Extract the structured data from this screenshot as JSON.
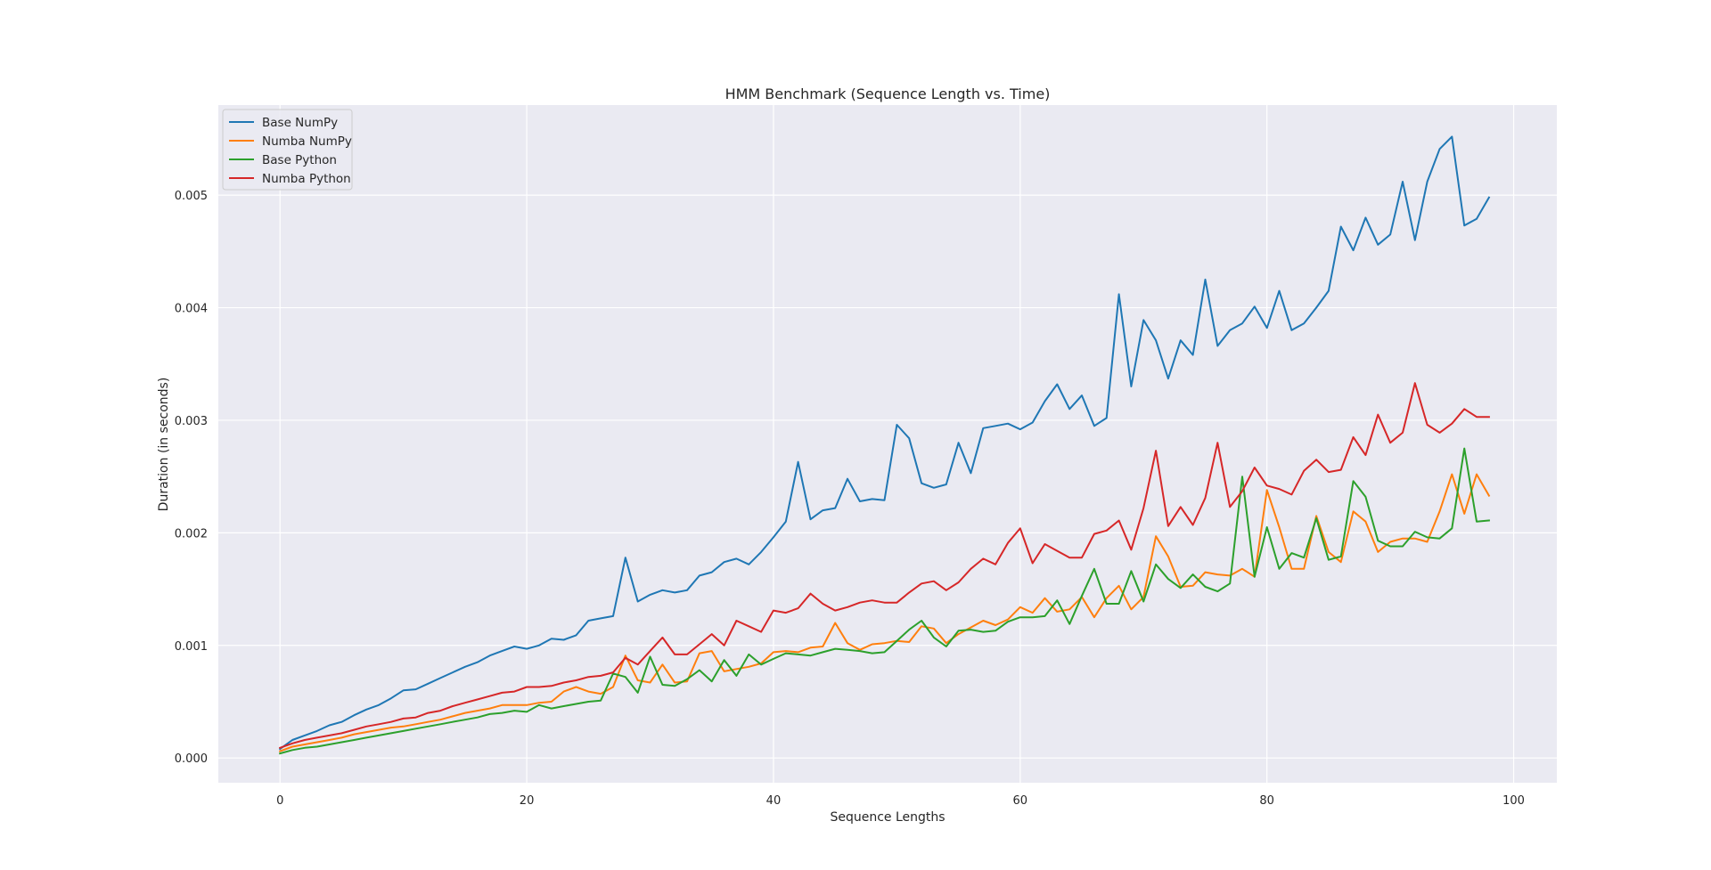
{
  "chart_data": {
    "type": "line",
    "title": "HMM Benchmark (Sequence Length vs. Time)",
    "xlabel": "Sequence Lengths",
    "ylabel": "Duration (in seconds)",
    "xlim": [
      -5,
      103.5
    ],
    "ylim": [
      -0.00022,
      0.0058
    ],
    "xticks": [
      0,
      20,
      40,
      60,
      80,
      100
    ],
    "xtick_labels": [
      "0",
      "20",
      "40",
      "60",
      "80",
      "100"
    ],
    "yticks": [
      0.0,
      0.001,
      0.002,
      0.003,
      0.004,
      0.005
    ],
    "ytick_labels": [
      "0.000",
      "0.001",
      "0.002",
      "0.003",
      "0.004",
      "0.005"
    ],
    "grid": true,
    "legend_position": "upper-left",
    "x_start": 0,
    "x_step": 1,
    "series": [
      {
        "name": "Base NumPy",
        "color": "#1f77b4",
        "values": [
          8e-05,
          0.00016,
          0.0002,
          0.00024,
          0.00029,
          0.00032,
          0.00038,
          0.00043,
          0.00047,
          0.00053,
          0.0006,
          0.00061,
          0.00066,
          0.00071,
          0.00076,
          0.00081,
          0.00085,
          0.00091,
          0.00095,
          0.00099,
          0.00097,
          0.001,
          0.00106,
          0.00105,
          0.00109,
          0.00122,
          0.00124,
          0.00126,
          0.00178,
          0.00139,
          0.00145,
          0.00149,
          0.00147,
          0.00149,
          0.00162,
          0.00165,
          0.00174,
          0.00177,
          0.00172,
          0.00183,
          0.00196,
          0.0021,
          0.00263,
          0.00212,
          0.0022,
          0.00222,
          0.00248,
          0.00228,
          0.0023,
          0.00229,
          0.00296,
          0.00284,
          0.00244,
          0.0024,
          0.00243,
          0.0028,
          0.00253,
          0.00293,
          0.00295,
          0.00297,
          0.00292,
          0.00298,
          0.00317,
          0.00332,
          0.0031,
          0.00322,
          0.00295,
          0.00302,
          0.00412,
          0.0033,
          0.00389,
          0.00371,
          0.00337,
          0.00371,
          0.00358,
          0.00425,
          0.00366,
          0.0038,
          0.00386,
          0.00401,
          0.00382,
          0.00415,
          0.0038,
          0.00386,
          0.004,
          0.00415,
          0.00472,
          0.00451,
          0.0048,
          0.00456,
          0.00465,
          0.00512,
          0.0046,
          0.00512,
          0.00541,
          0.00552,
          0.00473,
          0.00479,
          0.00498
        ]
      },
      {
        "name": "Numba NumPy",
        "color": "#ff7f0e",
        "values": [
          6e-05,
          0.0001,
          0.00012,
          0.00014,
          0.00016,
          0.00018,
          0.00021,
          0.00023,
          0.00025,
          0.00027,
          0.00028,
          0.0003,
          0.00032,
          0.00034,
          0.00037,
          0.0004,
          0.00042,
          0.00044,
          0.00047,
          0.00047,
          0.00047,
          0.00049,
          0.0005,
          0.00059,
          0.00063,
          0.00059,
          0.00057,
          0.00063,
          0.00091,
          0.00069,
          0.00067,
          0.00083,
          0.00067,
          0.00068,
          0.00093,
          0.00095,
          0.00077,
          0.00079,
          0.00081,
          0.00084,
          0.00094,
          0.00095,
          0.00094,
          0.00098,
          0.00099,
          0.0012,
          0.00102,
          0.00096,
          0.00101,
          0.00102,
          0.00104,
          0.00103,
          0.00117,
          0.00115,
          0.00102,
          0.0011,
          0.00116,
          0.00122,
          0.00118,
          0.00123,
          0.00134,
          0.00129,
          0.00142,
          0.0013,
          0.00132,
          0.00143,
          0.00125,
          0.00142,
          0.00153,
          0.00132,
          0.00143,
          0.00197,
          0.00179,
          0.00152,
          0.00153,
          0.00165,
          0.00163,
          0.00162,
          0.00168,
          0.00161,
          0.00238,
          0.00205,
          0.00168,
          0.00168,
          0.00215,
          0.00183,
          0.00174,
          0.00219,
          0.0021,
          0.00183,
          0.00192,
          0.00195,
          0.00195,
          0.00192,
          0.00219,
          0.00252,
          0.00217,
          0.00252,
          0.00233
        ]
      },
      {
        "name": "Base Python",
        "color": "#2ca02c",
        "values": [
          4e-05,
          7e-05,
          9e-05,
          0.0001,
          0.00012,
          0.00014,
          0.00016,
          0.00018,
          0.0002,
          0.00022,
          0.00024,
          0.00026,
          0.00028,
          0.0003,
          0.00032,
          0.00034,
          0.00036,
          0.00039,
          0.0004,
          0.00042,
          0.00041,
          0.00047,
          0.00044,
          0.00046,
          0.00048,
          0.0005,
          0.00051,
          0.00075,
          0.00072,
          0.00058,
          0.0009,
          0.00065,
          0.00064,
          0.0007,
          0.00078,
          0.00068,
          0.00087,
          0.00073,
          0.00092,
          0.00083,
          0.00088,
          0.00093,
          0.00092,
          0.00091,
          0.00094,
          0.00097,
          0.00096,
          0.00095,
          0.00093,
          0.00094,
          0.00104,
          0.00114,
          0.00122,
          0.00107,
          0.00099,
          0.00113,
          0.00114,
          0.00112,
          0.00113,
          0.00121,
          0.00125,
          0.00125,
          0.00126,
          0.0014,
          0.00119,
          0.00144,
          0.00168,
          0.00137,
          0.00137,
          0.00166,
          0.00139,
          0.00172,
          0.00159,
          0.00151,
          0.00163,
          0.00152,
          0.00148,
          0.00155,
          0.0025,
          0.00161,
          0.00205,
          0.00168,
          0.00182,
          0.00178,
          0.00213,
          0.00176,
          0.00179,
          0.00246,
          0.00232,
          0.00193,
          0.00188,
          0.00188,
          0.00201,
          0.00196,
          0.00195,
          0.00204,
          0.00275,
          0.0021,
          0.00211
        ]
      },
      {
        "name": "Numba Python",
        "color": "#d62728",
        "values": [
          9e-05,
          0.00013,
          0.00016,
          0.00018,
          0.0002,
          0.00022,
          0.00025,
          0.00028,
          0.0003,
          0.00032,
          0.00035,
          0.00036,
          0.0004,
          0.00042,
          0.00046,
          0.00049,
          0.00052,
          0.00055,
          0.00058,
          0.00059,
          0.00063,
          0.00063,
          0.00064,
          0.00067,
          0.00069,
          0.00072,
          0.00073,
          0.00076,
          0.00089,
          0.00083,
          0.00095,
          0.00107,
          0.00092,
          0.00092,
          0.00101,
          0.0011,
          0.001,
          0.00122,
          0.00117,
          0.00112,
          0.00131,
          0.00129,
          0.00133,
          0.00146,
          0.00137,
          0.00131,
          0.00134,
          0.00138,
          0.0014,
          0.00138,
          0.00138,
          0.00147,
          0.00155,
          0.00157,
          0.00149,
          0.00156,
          0.00168,
          0.00177,
          0.00172,
          0.00191,
          0.00204,
          0.00173,
          0.0019,
          0.00184,
          0.00178,
          0.00178,
          0.00199,
          0.00202,
          0.00211,
          0.00185,
          0.00222,
          0.00273,
          0.00206,
          0.00223,
          0.00207,
          0.00231,
          0.0028,
          0.00223,
          0.00237,
          0.00258,
          0.00242,
          0.00239,
          0.00234,
          0.00255,
          0.00265,
          0.00254,
          0.00256,
          0.00285,
          0.00269,
          0.00305,
          0.0028,
          0.00289,
          0.00333,
          0.00296,
          0.00289,
          0.00297,
          0.0031,
          0.00303,
          0.00303
        ]
      }
    ]
  }
}
